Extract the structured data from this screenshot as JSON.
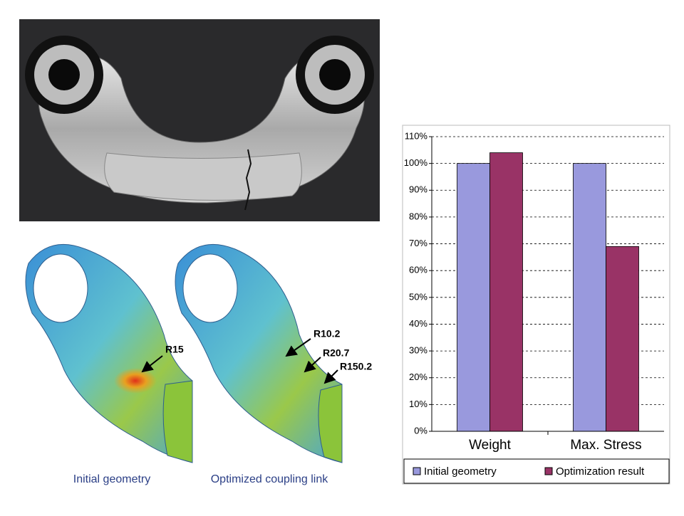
{
  "chart_data": {
    "type": "bar",
    "categories": [
      "Weight",
      "Max. Stress"
    ],
    "series": [
      {
        "name": "Initial geometry",
        "color": "#9999dd",
        "values": [
          100,
          100
        ]
      },
      {
        "name": "Optimization result",
        "color": "#993366",
        "values": [
          104,
          69
        ]
      }
    ],
    "ylim": [
      0,
      110
    ],
    "yticks": [
      {
        "value": 0,
        "label": "0%"
      },
      {
        "value": 10,
        "label": "10%"
      },
      {
        "value": 20,
        "label": "20%"
      },
      {
        "value": 30,
        "label": "30%"
      },
      {
        "value": 40,
        "label": "40%"
      },
      {
        "value": 50,
        "label": "50%"
      },
      {
        "value": 60,
        "label": "60%"
      },
      {
        "value": 70,
        "label": "70%"
      },
      {
        "value": 80,
        "label": "80%"
      },
      {
        "value": 90,
        "label": "90%"
      },
      {
        "value": 100,
        "label": "100%"
      },
      {
        "value": 110,
        "label": "110%"
      }
    ],
    "grid": true,
    "legend": "bottom"
  },
  "figures": {
    "captions": [
      "Initial geometry",
      "Optimized coupling link"
    ],
    "annotations": [
      "R15",
      "R10.2",
      "R20.7",
      "R150.2"
    ]
  }
}
